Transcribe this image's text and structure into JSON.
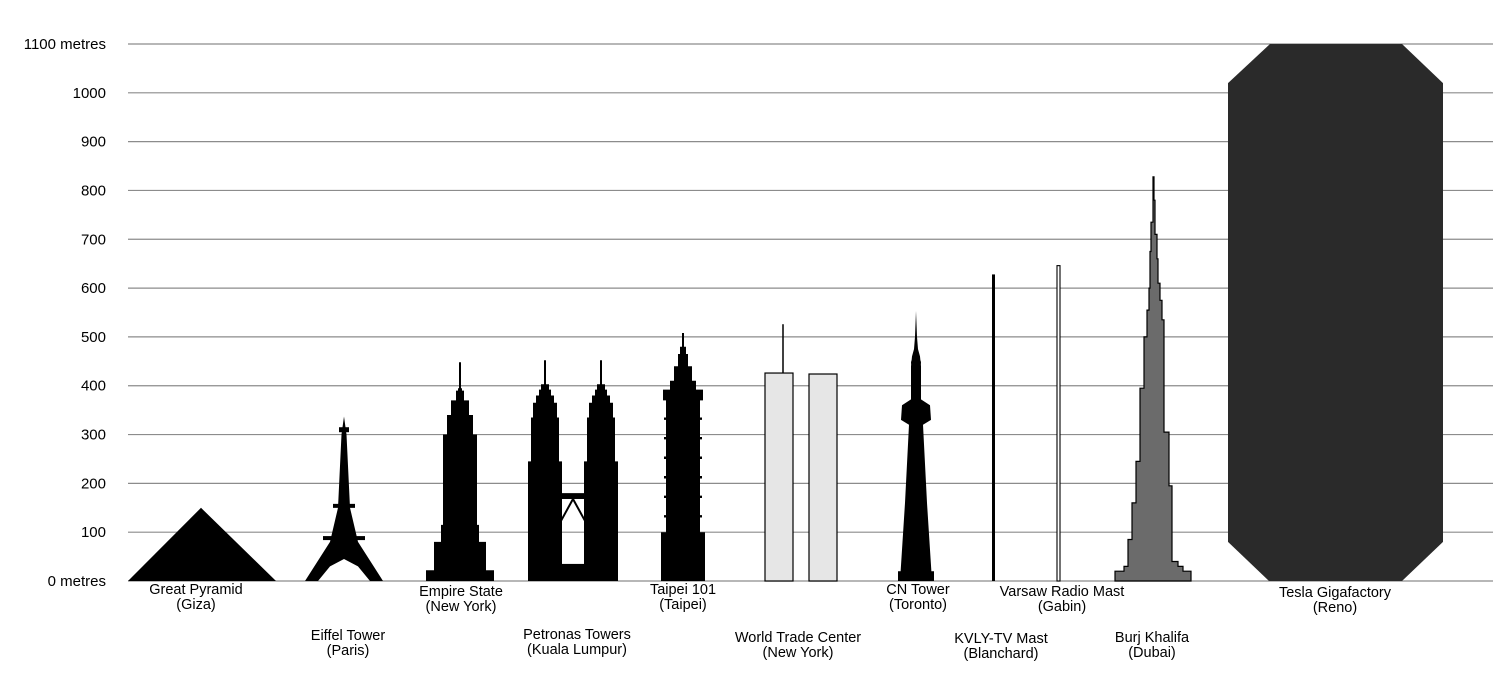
{
  "chart_data": {
    "type": "bar",
    "title": "",
    "xlabel": "",
    "ylabel": "",
    "ylim": [
      0,
      1100
    ],
    "y_ticks": [
      {
        "value": 0,
        "label": "0 metres"
      },
      {
        "value": 100,
        "label": "100"
      },
      {
        "value": 200,
        "label": "200"
      },
      {
        "value": 300,
        "label": "300"
      },
      {
        "value": 400,
        "label": "400"
      },
      {
        "value": 500,
        "label": "500"
      },
      {
        "value": 600,
        "label": "600"
      },
      {
        "value": 700,
        "label": "700"
      },
      {
        "value": 800,
        "label": "800"
      },
      {
        "value": 900,
        "label": "900"
      },
      {
        "value": 1000,
        "label": "1000"
      },
      {
        "value": 1100,
        "label": "1100 metres"
      }
    ],
    "grid": true,
    "colors": {
      "silhouette": "#000000",
      "wtc_fill": "#e6e6e6",
      "burj_fill": "#6b6b6b",
      "gigafactory_fill": "#2a2a2a",
      "gridline": "#8c8c8c"
    },
    "buildings": [
      {
        "name": "Great Pyramid",
        "location": "(Giza)",
        "height": 150
      },
      {
        "name": "Eiffel Tower",
        "location": "(Paris)",
        "height": 337
      },
      {
        "name": "Empire State",
        "location": "(New York)",
        "height": 448
      },
      {
        "name": "Petronas Towers",
        "location": "(Kuala Lumpur)",
        "height": 452
      },
      {
        "name": "Taipei 101",
        "location": "(Taipei)",
        "height": 508
      },
      {
        "name": "World Trade Center",
        "location": "(New York)",
        "height": 526
      },
      {
        "name": "CN Tower",
        "location": "(Toronto)",
        "height": 553
      },
      {
        "name": "KVLY-TV Mast",
        "location": "(Blanchard)",
        "height": 628
      },
      {
        "name": "Varsaw Radio Mast",
        "location": "(Gabin)",
        "height": 646
      },
      {
        "name": "Burj Khalifa",
        "location": "(Dubai)",
        "height": 828
      },
      {
        "name": "Tesla Gigafactory",
        "location": "(Reno)",
        "height": 1100
      }
    ]
  }
}
